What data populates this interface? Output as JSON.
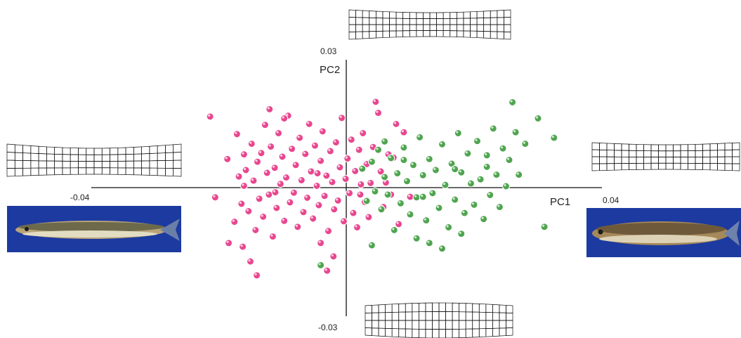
{
  "chart_data": {
    "type": "scatter",
    "title": "",
    "xlabel": "PC1",
    "ylabel": "PC2",
    "xlim": [
      -0.04,
      0.04
    ],
    "ylim": [
      -0.03,
      0.03
    ],
    "x_tick_labels": [
      "-0.04",
      "0.04"
    ],
    "y_tick_labels": [
      "0.03",
      "-0.03"
    ],
    "grid": false,
    "legend": "none",
    "colors": {
      "pink": "#e8478f",
      "green": "#4fa54f"
    },
    "series": [
      {
        "color": "pink",
        "points": [
          [
            -0.0213,
            0.0154
          ],
          [
            -0.0186,
            0.0062
          ],
          [
            -0.0175,
            -0.0074
          ],
          [
            -0.0171,
            0.0116
          ],
          [
            -0.0168,
            0.0024
          ],
          [
            -0.0164,
            -0.0035
          ],
          [
            -0.0162,
            -0.0128
          ],
          [
            -0.0157,
            0.0038
          ],
          [
            -0.0153,
            -0.0051
          ],
          [
            -0.0148,
            0.0095
          ],
          [
            -0.0145,
            0.0015
          ],
          [
            -0.0142,
            -0.0092
          ],
          [
            -0.0139,
            0.0056
          ],
          [
            -0.0136,
            -0.0024
          ],
          [
            -0.0133,
            0.0075
          ],
          [
            -0.013,
            -0.0063
          ],
          [
            -0.0127,
            0.0136
          ],
          [
            -0.0124,
            0.0032
          ],
          [
            -0.0121,
            -0.0015
          ],
          [
            -0.0118,
            0.0089
          ],
          [
            -0.0115,
            -0.0106
          ],
          [
            -0.0112,
            0.0043
          ],
          [
            -0.0109,
            -0.0044
          ],
          [
            -0.0106,
            0.0118
          ],
          [
            -0.0103,
            0.0008
          ],
          [
            -0.01,
            0.0067
          ],
          [
            -0.0097,
            -0.0072
          ],
          [
            -0.0094,
            0.0022
          ],
          [
            -0.0091,
            0.0156
          ],
          [
            -0.0088,
            -0.0032
          ],
          [
            -0.0085,
            0.0084
          ],
          [
            -0.0082,
            -0.0011
          ],
          [
            -0.0079,
            0.0049
          ],
          [
            -0.0076,
            -0.0085
          ],
          [
            -0.0073,
            0.0108
          ],
          [
            -0.007,
            0.0016
          ],
          [
            -0.0067,
            -0.0053
          ],
          [
            -0.0064,
            0.0073
          ],
          [
            -0.0061,
            -0.0022
          ],
          [
            -0.0058,
            0.0138
          ],
          [
            -0.0055,
            0.0035
          ],
          [
            -0.0052,
            -0.0067
          ],
          [
            -0.0049,
            0.0091
          ],
          [
            -0.0046,
            0.0004
          ],
          [
            -0.0043,
            -0.0038
          ],
          [
            -0.004,
            0.0058
          ],
          [
            -0.0037,
            0.0122
          ],
          [
            -0.0034,
            -0.0018
          ],
          [
            -0.0031,
            0.0026
          ],
          [
            -0.0028,
            -0.0094
          ],
          [
            -0.0025,
            0.0079
          ],
          [
            -0.0022,
            0.0012
          ],
          [
            -0.0019,
            -0.0047
          ],
          [
            -0.0016,
            0.0098
          ],
          [
            -0.0013,
            -0.0028
          ],
          [
            -0.001,
            0.0044
          ],
          [
            -0.0007,
            0.0151
          ],
          [
            -0.0004,
            -0.0073
          ],
          [
            -0.0001,
            0.0019
          ],
          [
            0.0002,
            0.0063
          ],
          [
            0.0005,
            -0.0012
          ],
          [
            0.0008,
            0.0104
          ],
          [
            0.0011,
            -0.0055
          ],
          [
            0.0014,
            0.0036
          ],
          [
            0.0017,
            -0.0086
          ],
          [
            0.002,
            0.0082
          ],
          [
            0.0023,
            0.0007
          ],
          [
            0.0026,
            0.0118
          ],
          [
            0.0029,
            -0.0031
          ],
          [
            0.0032,
            0.0051
          ],
          [
            0.0035,
            -0.0064
          ],
          [
            0.0038,
            0.001
          ],
          [
            0.0042,
            0.0088
          ],
          [
            0.0046,
            0.0186
          ],
          [
            0.005,
            0.0162
          ],
          [
            0.0054,
            0.0035
          ],
          [
            0.0058,
            -0.0042
          ],
          [
            0.0062,
            0.0011
          ],
          [
            0.0066,
            0.0072
          ],
          [
            0.007,
            -0.0015
          ],
          [
            0.0074,
            0.0065
          ],
          [
            0.0078,
            0.0138
          ],
          [
            0.0082,
            -0.0079
          ],
          [
            -0.0205,
            -0.0021
          ],
          [
            -0.0184,
            -0.012
          ],
          [
            -0.016,
            0.0072
          ],
          [
            -0.015,
            -0.016
          ],
          [
            -0.012,
            0.017
          ],
          [
            -0.004,
            -0.012
          ],
          [
            -0.002,
            -0.0149
          ],
          [
            0.009,
            0.012
          ],
          [
            -0.014,
            -0.019
          ],
          [
            -0.003,
            -0.018
          ],
          [
            -0.0097,
            0.015
          ],
          [
            0.01,
            -0.002
          ],
          [
            -0.016,
            0.0004
          ],
          [
            -0.0045,
            0.0031
          ],
          [
            0.0022,
            -0.0015
          ],
          [
            -0.0111,
            -0.001
          ]
        ]
      },
      {
        "color": "green",
        "points": [
          [
            0.0025,
            0.0041
          ],
          [
            0.0032,
            -0.0029
          ],
          [
            0.004,
            0.0056
          ],
          [
            0.0045,
            -0.0008
          ],
          [
            0.005,
            0.0082
          ],
          [
            0.0055,
            -0.0047
          ],
          [
            0.006,
            0.0023
          ],
          [
            0.0065,
            -0.0015
          ],
          [
            0.007,
            0.0064
          ],
          [
            0.0075,
            -0.0092
          ],
          [
            0.008,
            0.0031
          ],
          [
            0.0085,
            -0.0034
          ],
          [
            0.009,
            0.0087
          ],
          [
            0.0095,
            0.0014
          ],
          [
            0.01,
            -0.0058
          ],
          [
            0.0105,
            0.0049
          ],
          [
            0.011,
            -0.0021
          ],
          [
            0.0115,
            0.0109
          ],
          [
            0.012,
            0.0027
          ],
          [
            0.0125,
            -0.0071
          ],
          [
            0.013,
            0.0062
          ],
          [
            0.0135,
            -0.0012
          ],
          [
            0.014,
            0.0038
          ],
          [
            0.0145,
            -0.0044
          ],
          [
            0.015,
            0.0094
          ],
          [
            0.0155,
            0.0006
          ],
          [
            0.016,
            -0.0086
          ],
          [
            0.0165,
            0.0052
          ],
          [
            0.017,
            -0.0026
          ],
          [
            0.0175,
            0.0118
          ],
          [
            0.018,
            0.0033
          ],
          [
            0.0185,
            -0.0055
          ],
          [
            0.019,
            0.0074
          ],
          [
            0.0195,
            0.0009
          ],
          [
            0.02,
            -0.0037
          ],
          [
            0.0205,
            0.0101
          ],
          [
            0.021,
            0.0018
          ],
          [
            0.0215,
            -0.0068
          ],
          [
            0.022,
            0.0045
          ],
          [
            0.0225,
            -0.0016
          ],
          [
            0.023,
            0.0128
          ],
          [
            0.0235,
            0.0028
          ],
          [
            0.024,
            -0.0042
          ],
          [
            0.0245,
            0.0085
          ],
          [
            0.025,
            0.0003
          ],
          [
            0.0255,
            0.006
          ],
          [
            0.026,
            0.0185
          ],
          [
            0.0265,
            0.012
          ],
          [
            0.027,
            0.0028
          ],
          [
            0.028,
            0.0095
          ],
          [
            0.03,
            0.015
          ],
          [
            0.031,
            -0.0085
          ],
          [
            0.0325,
            0.0108
          ],
          [
            0.013,
            -0.012
          ],
          [
            0.011,
            -0.011
          ],
          [
            0.015,
            -0.0132
          ],
          [
            0.004,
            -0.0125
          ],
          [
            -0.004,
            -0.0168
          ],
          [
            0.018,
            -0.01
          ],
          [
            0.022,
            0.007
          ],
          [
            0.009,
            0.006
          ],
          [
            0.012,
            -0.002
          ],
          [
            0.017,
            0.004
          ],
          [
            0.006,
            0.01
          ]
        ]
      }
    ],
    "inset_labels": []
  }
}
